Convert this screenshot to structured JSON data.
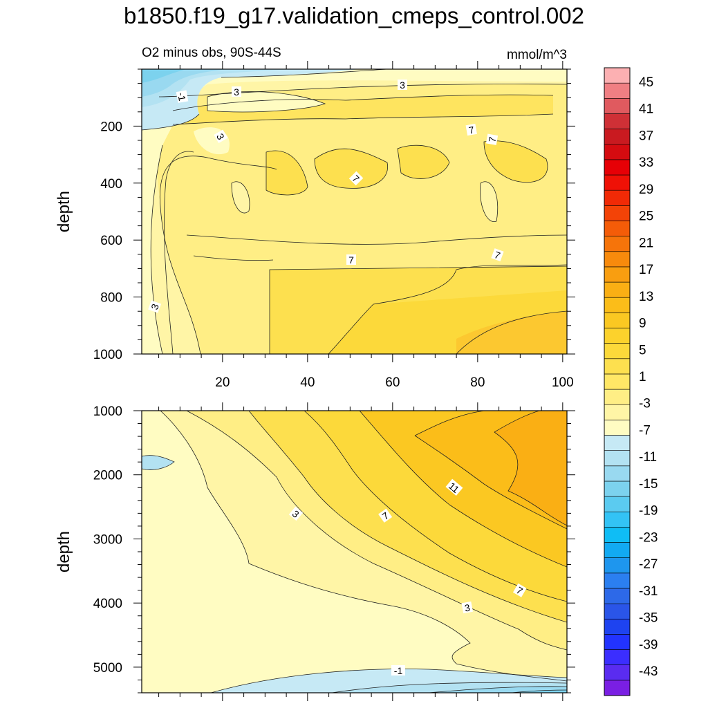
{
  "title": "b1850.f19_g17.validation_cmeps_control.002",
  "colors": {
    "blue": [
      "#7a1fe3",
      "#5a2cf0",
      "#3b2eff",
      "#2233ff",
      "#1e43f0",
      "#2a55e8",
      "#2d69e8",
      "#2b7ff0",
      "#1e96ee",
      "#12aaf2",
      "#0fbdf5",
      "#33c3f5",
      "#5bcbf0",
      "#7cd2ee",
      "#99d9f0",
      "#b3e2f2",
      "#c6e9f5"
    ],
    "warm": [
      "#fffcc2",
      "#fff5a6",
      "#ffee85",
      "#ffe766",
      "#fde04f",
      "#fcd93a",
      "#fcd22c",
      "#fbc822",
      "#fbbd19",
      "#faaf14",
      "#f99e10",
      "#f88a0c",
      "#f6740a",
      "#f45c08",
      "#f34307",
      "#f12a06",
      "#ef1106",
      "#e60006",
      "#d50b10",
      "#c91a20",
      "#cf3036",
      "#e05a5f",
      "#f07f83",
      "#fcb0b2"
    ]
  },
  "chart_data": [
    {
      "type": "heatmap",
      "subtitle": "O2 minus obs, 90S-44S",
      "units": "mmol/m^3",
      "ylabel": "depth",
      "ylim": [
        0,
        1000
      ],
      "yticks": [
        "200",
        "400",
        "600",
        "800",
        "1000"
      ],
      "xlim": [
        1,
        101
      ],
      "xticks": [
        "20",
        "40",
        "60",
        "80",
        "100"
      ],
      "contour_labels": [
        "-1",
        "3",
        "3",
        "3",
        "7",
        "7",
        "7",
        "7",
        "7",
        "3"
      ]
    },
    {
      "type": "heatmap",
      "ylabel": "depth",
      "ylim": [
        1000,
        5400
      ],
      "yticks": [
        "1000",
        "2000",
        "3000",
        "4000",
        "5000"
      ],
      "xlim": [
        1,
        101
      ],
      "contour_labels": [
        "3",
        "7",
        "11",
        "7",
        "3",
        "-1"
      ]
    },
    {
      "type": "colorbar",
      "labels": [
        "45",
        "41",
        "37",
        "33",
        "29",
        "25",
        "21",
        "17",
        "13",
        "9",
        "5",
        "1",
        "-3",
        "-7",
        "-11",
        "-15",
        "-19",
        "-23",
        "-27",
        "-31",
        "-35",
        "-39",
        "-43"
      ]
    }
  ]
}
